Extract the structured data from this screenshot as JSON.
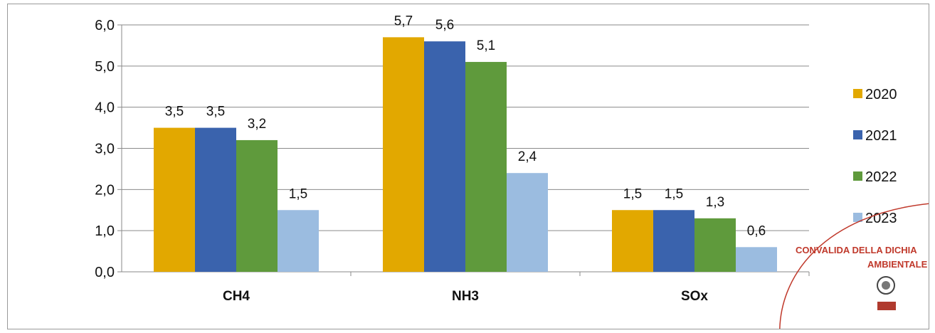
{
  "chart_data": {
    "type": "bar",
    "categories": [
      "CH4",
      "NH3",
      "SOx"
    ],
    "series": [
      {
        "name": "2020",
        "values": [
          3.5,
          5.7,
          1.5
        ],
        "labels": [
          "3,5",
          "5,7",
          "1,5"
        ],
        "color": "#E2A800"
      },
      {
        "name": "2021",
        "values": [
          3.5,
          5.6,
          1.5
        ],
        "labels": [
          "3,5",
          "5,6",
          "1,5"
        ],
        "color": "#3A63AD"
      },
      {
        "name": "2022",
        "values": [
          3.2,
          5.1,
          1.3
        ],
        "labels": [
          "3,2",
          "5,1",
          "1,3"
        ],
        "color": "#5F9A3C"
      },
      {
        "name": "2023",
        "values": [
          1.5,
          2.4,
          0.6
        ],
        "labels": [
          "1,5",
          "2,4",
          "0,6"
        ],
        "color": "#9BBCE0"
      }
    ],
    "ylim": [
      0,
      6
    ],
    "yticks": [
      "0,0",
      "1,0",
      "2,0",
      "3,0",
      "4,0",
      "5,0",
      "6,0"
    ],
    "grid": true,
    "legend_position": "right"
  },
  "stamp": {
    "line1": "CONVALIDA DELLA DICHIA",
    "line2": "AMBIENTALE EMA",
    "color": "#c0392b",
    "logo": "bureau-veritas-seal"
  }
}
